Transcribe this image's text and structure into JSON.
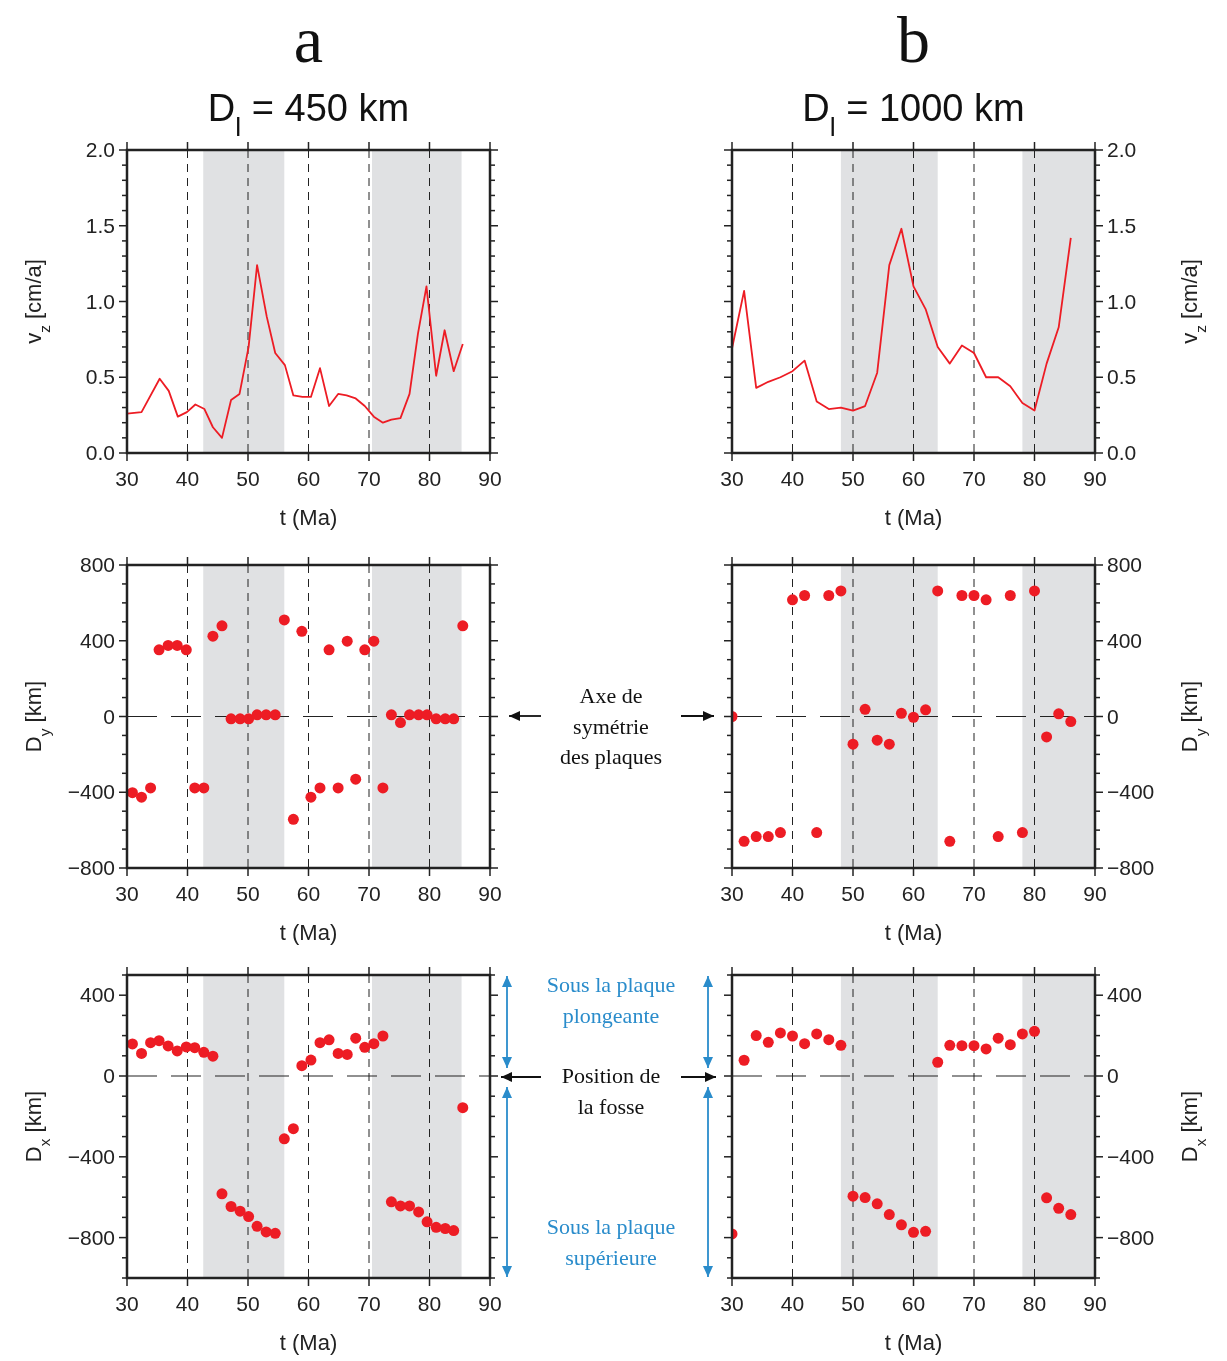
{
  "chart_data": [
    {
      "type": "line",
      "title": "a",
      "subtitle": "D$_{l}$ = 450 km",
      "xlabel": "t (Ma)",
      "ylabel": "v$_{z}$ [cm/a]",
      "xlim": [
        30,
        90
      ],
      "xticks": [
        30,
        40,
        50,
        60,
        70,
        80,
        90
      ],
      "ylim": [
        0,
        2
      ],
      "yticks": [
        {
          "value": 0,
          "label": "0.0"
        },
        {
          "value": 0.1,
          "label": null
        },
        {
          "value": 0.2,
          "label": null
        },
        {
          "value": 0.3,
          "label": null
        },
        {
          "value": 0.4,
          "label": null
        },
        {
          "value": 0.5,
          "label": "0.5"
        },
        {
          "value": 0.6,
          "label": null
        },
        {
          "value": 0.7,
          "label": null
        },
        {
          "value": 0.8,
          "label": null
        },
        {
          "value": 0.9,
          "label": null
        },
        {
          "value": 1,
          "label": "1.0"
        },
        {
          "value": 1.1,
          "label": null
        },
        {
          "value": 1.2,
          "label": null
        },
        {
          "value": 1.3,
          "label": null
        },
        {
          "value": 1.4,
          "label": null
        },
        {
          "value": 1.5,
          "label": "1.5"
        },
        {
          "value": 1.6,
          "label": null
        },
        {
          "value": 1.7,
          "label": null
        },
        {
          "value": 1.8,
          "label": null
        },
        {
          "value": 1.9,
          "label": null
        },
        {
          "value": 2,
          "label": "2.0"
        }
      ],
      "grid": "x",
      "marker": "none",
      "line_style": "solid",
      "bands": [
        {
          "axis": "x",
          "from": 42.6,
          "to": 56,
          "color": "#e0e1e3"
        },
        {
          "axis": "x",
          "from": 70.5,
          "to": 85.3,
          "color": "#e0e1e3"
        }
      ],
      "series": [
        {
          "color": "#ed1c24",
          "x": [
            30,
            32.4,
            35.4,
            36.9,
            38.4,
            39.9,
            41.3,
            42.8,
            44.2,
            45.7,
            47.2,
            48.6,
            50.1,
            51.5,
            53.1,
            54.5,
            56.1,
            57.5,
            59,
            60.4,
            61.9,
            63.4,
            64.9,
            66.3,
            67.8,
            69.3,
            70.8,
            72.3,
            73.7,
            75.2,
            76.7,
            78.1,
            79.5,
            81.1,
            82.5,
            84,
            85.5
          ],
          "values": [
            0.26,
            0.27,
            0.49,
            0.41,
            0.24,
            0.27,
            0.32,
            0.29,
            0.17,
            0.1,
            0.35,
            0.39,
            0.7,
            1.24,
            0.9,
            0.66,
            0.58,
            0.38,
            0.37,
            0.37,
            0.56,
            0.31,
            0.39,
            0.38,
            0.36,
            0.31,
            0.24,
            0.2,
            0.22,
            0.23,
            0.39,
            0.79,
            1.1,
            0.51,
            0.81,
            0.54,
            0.72
          ]
        }
      ]
    },
    {
      "type": "line",
      "title": "b",
      "subtitle": "D$_{l}$ = 1000 km",
      "xlabel": "t (Ma)",
      "y2label": "v$_{z}$ [cm/a]",
      "xlim": [
        30,
        90
      ],
      "xticks": [
        30,
        40,
        50,
        60,
        70,
        80,
        90
      ],
      "y2lim": [
        0,
        2
      ],
      "y2ticks": [
        {
          "value": 0,
          "label": "0.0"
        },
        {
          "value": 0.1,
          "label": null
        },
        {
          "value": 0.2,
          "label": null
        },
        {
          "value": 0.3,
          "label": null
        },
        {
          "value": 0.4,
          "label": null
        },
        {
          "value": 0.5,
          "label": "0.5"
        },
        {
          "value": 0.6,
          "label": null
        },
        {
          "value": 0.7,
          "label": null
        },
        {
          "value": 0.8,
          "label": null
        },
        {
          "value": 0.9,
          "label": null
        },
        {
          "value": 1,
          "label": "1.0"
        },
        {
          "value": 1.1,
          "label": null
        },
        {
          "value": 1.2,
          "label": null
        },
        {
          "value": 1.3,
          "label": null
        },
        {
          "value": 1.4,
          "label": null
        },
        {
          "value": 1.5,
          "label": "1.5"
        },
        {
          "value": 1.6,
          "label": null
        },
        {
          "value": 1.7,
          "label": null
        },
        {
          "value": 1.8,
          "label": null
        },
        {
          "value": 1.9,
          "label": null
        },
        {
          "value": 2,
          "label": "2.0"
        }
      ],
      "grid": "x",
      "marker": "none",
      "line_style": "solid",
      "bands": [
        {
          "axis": "x",
          "from": 48,
          "to": 64,
          "color": "#e0e1e3"
        },
        {
          "axis": "x",
          "from": 78,
          "to": 90,
          "color": "#e0e1e3"
        }
      ],
      "series": [
        {
          "color": "#ed1c24",
          "axis": "y2",
          "x": [
            30,
            32,
            34,
            36,
            38,
            40,
            42,
            44,
            46,
            48,
            50,
            52,
            54,
            56,
            58,
            60,
            62,
            64,
            66,
            68,
            70,
            72,
            74,
            76,
            78,
            80,
            82,
            84,
            86
          ],
          "values": [
            0.69,
            1.07,
            0.43,
            0.47,
            0.5,
            0.54,
            0.61,
            0.34,
            0.29,
            0.3,
            0.28,
            0.31,
            0.53,
            1.24,
            1.48,
            1.1,
            0.95,
            0.7,
            0.59,
            0.71,
            0.66,
            0.5,
            0.5,
            0.44,
            0.33,
            0.28,
            0.59,
            0.83,
            1.42
          ]
        }
      ]
    },
    {
      "type": "scatter",
      "xlabel": "t (Ma)",
      "ylabel": "D$_{y}$ [km]",
      "xlim": [
        30,
        90
      ],
      "xticks": [
        30,
        40,
        50,
        60,
        70,
        80,
        90
      ],
      "ylim": [
        -800,
        800
      ],
      "yticks": [
        {
          "value": -800,
          "label": "−800"
        },
        {
          "value": -700,
          "label": null
        },
        {
          "value": -600,
          "label": null
        },
        {
          "value": -500,
          "label": null
        },
        {
          "value": -400,
          "label": "−400"
        },
        {
          "value": -300,
          "label": null
        },
        {
          "value": -200,
          "label": null
        },
        {
          "value": -100,
          "label": null
        },
        0,
        {
          "value": 100,
          "label": null
        },
        {
          "value": 200,
          "label": null
        },
        {
          "value": 300,
          "label": null
        },
        400,
        {
          "value": 500,
          "label": null
        },
        {
          "value": 600,
          "label": null
        },
        {
          "value": 700,
          "label": null
        },
        800
      ],
      "grid": "x",
      "marker": "circle",
      "bands": [
        {
          "axis": "x",
          "from": 42.6,
          "to": 56,
          "color": "#e0e1e3"
        },
        {
          "axis": "x",
          "from": 70.5,
          "to": 85.3,
          "color": "#e0e1e3"
        }
      ],
      "ref_lines": [
        {
          "axis": "y",
          "value": 0,
          "line_style": "dashed"
        }
      ],
      "annotations": [
        "Axe de\nsymétrie\ndes plaques"
      ],
      "series": [
        {
          "color": "#ed1c24",
          "x": [
            30.9,
            32.4,
            33.9,
            35.3,
            36.8,
            38.3,
            39.8,
            41.2,
            42.7,
            44.2,
            45.7,
            47.2,
            48.7,
            50.1,
            51.5,
            53,
            54.5,
            56,
            57.5,
            58.9,
            60.4,
            61.9,
            63.4,
            64.9,
            66.4,
            67.8,
            69.3,
            70.8,
            72.3,
            73.7,
            75.2,
            76.7,
            78.2,
            79.6,
            81.1,
            82.6,
            84,
            85.5
          ],
          "values": [
            -402,
            -426,
            -377,
            352,
            375,
            375,
            352,
            -377,
            -377,
            424,
            479,
            -12,
            -12,
            -12,
            9,
            9,
            9,
            510,
            -543,
            450,
            -426,
            -377,
            352,
            -377,
            398,
            -331,
            352,
            398,
            -377,
            9,
            -32,
            9,
            9,
            9,
            -12,
            -12,
            -12,
            479
          ]
        }
      ]
    },
    {
      "type": "scatter",
      "xlabel": "t (Ma)",
      "y2label": "D$_{y}$ [km]",
      "xlim": [
        30,
        90
      ],
      "xticks": [
        30,
        40,
        50,
        60,
        70,
        80,
        90
      ],
      "y2lim": [
        -800,
        800
      ],
      "y2ticks": [
        {
          "value": -800,
          "label": "−800"
        },
        {
          "value": -700,
          "label": null
        },
        {
          "value": -600,
          "label": null
        },
        {
          "value": -500,
          "label": null
        },
        {
          "value": -400,
          "label": "−400"
        },
        {
          "value": -300,
          "label": null
        },
        {
          "value": -200,
          "label": null
        },
        {
          "value": -100,
          "label": null
        },
        0,
        {
          "value": 100,
          "label": null
        },
        {
          "value": 200,
          "label": null
        },
        {
          "value": 300,
          "label": null
        },
        400,
        {
          "value": 500,
          "label": null
        },
        {
          "value": 600,
          "label": null
        },
        {
          "value": 700,
          "label": null
        },
        800
      ],
      "grid": "x",
      "marker": "circle",
      "bands": [
        {
          "axis": "x",
          "from": 48,
          "to": 64,
          "color": "#e0e1e3"
        },
        {
          "axis": "x",
          "from": 78,
          "to": 90,
          "color": "#e0e1e3"
        }
      ],
      "ref_lines": [
        {
          "axis": "y2",
          "value": 0,
          "line_style": "dashed"
        }
      ],
      "series": [
        {
          "color": "#ed1c24",
          "axis": "y2",
          "x": [
            30,
            32,
            34,
            36,
            38,
            40,
            42,
            44,
            46,
            48,
            50,
            52,
            54,
            56,
            58,
            60,
            62,
            64,
            66,
            68,
            70,
            72,
            74,
            76,
            78,
            80,
            82,
            84,
            86
          ],
          "values": [
            0,
            -659,
            -634,
            -634,
            -613,
            616,
            639,
            -613,
            639,
            663,
            -146,
            38,
            -125,
            -146,
            17,
            -4,
            35,
            663,
            -659,
            639,
            639,
            616,
            -634,
            639,
            -613,
            663,
            -108,
            14,
            -27
          ]
        }
      ]
    },
    {
      "type": "scatter",
      "xlabel": "t (Ma)",
      "ylabel": "D$_{x}$ [km]",
      "xlim": [
        30,
        90
      ],
      "xticks": [
        30,
        40,
        50,
        60,
        70,
        80,
        90
      ],
      "ylim": [
        -1000,
        500
      ],
      "yticks": [
        {
          "value": -1000,
          "label": null
        },
        {
          "value": -900,
          "label": null
        },
        {
          "value": -800,
          "label": "−800"
        },
        {
          "value": -700,
          "label": null
        },
        {
          "value": -600,
          "label": null
        },
        {
          "value": -500,
          "label": null
        },
        {
          "value": -400,
          "label": "−400"
        },
        {
          "value": -300,
          "label": null
        },
        {
          "value": -200,
          "label": null
        },
        {
          "value": -100,
          "label": null
        },
        0,
        {
          "value": 100,
          "label": null
        },
        {
          "value": 200,
          "label": null
        },
        {
          "value": 300,
          "label": null
        },
        400,
        {
          "value": 500,
          "label": null
        }
      ],
      "grid": "x",
      "marker": "circle",
      "bands": [
        {
          "axis": "x",
          "from": 42.6,
          "to": 56,
          "color": "#e0e1e3"
        },
        {
          "axis": "x",
          "from": 70.5,
          "to": 85.3,
          "color": "#e0e1e3"
        }
      ],
      "ref_lines": [
        {
          "axis": "y",
          "value": 0,
          "line_style": "dashed"
        }
      ],
      "annotations": [
        "Sous la plaque\nplongeante",
        "Position de\nla fosse",
        "Sous la plaque\nsupérieure"
      ],
      "series": [
        {
          "color": "#ed1c24",
          "x": [
            30.9,
            32.4,
            33.9,
            35.3,
            36.8,
            38.3,
            39.8,
            41.2,
            42.7,
            44.2,
            45.7,
            47.2,
            48.7,
            50.1,
            51.5,
            53,
            54.5,
            56,
            57.5,
            58.9,
            60.4,
            61.9,
            63.4,
            64.9,
            66.4,
            67.8,
            69.3,
            70.8,
            72.3,
            73.7,
            75.2,
            76.7,
            78.2,
            79.6,
            81.1,
            82.6,
            84,
            85.5
          ],
          "values": [
            159,
            112,
            165,
            175,
            149,
            124,
            144,
            140,
            117,
            98,
            -583,
            -646,
            -669,
            -696,
            -744,
            -772,
            -779,
            -311,
            -261,
            51,
            79,
            165,
            179,
            112,
            107,
            187,
            142,
            160,
            198,
            -623,
            -643,
            -643,
            -673,
            -722,
            -749,
            -755,
            -765,
            -157
          ]
        }
      ]
    },
    {
      "type": "scatter",
      "xlabel": "t (Ma)",
      "y2label": "D$_{x}$ [km]",
      "xlim": [
        30,
        90
      ],
      "xticks": [
        30,
        40,
        50,
        60,
        70,
        80,
        90
      ],
      "y2lim": [
        -1000,
        500
      ],
      "y2ticks": [
        {
          "value": -1000,
          "label": null
        },
        {
          "value": -900,
          "label": null
        },
        {
          "value": -800,
          "label": "−800"
        },
        {
          "value": -700,
          "label": null
        },
        {
          "value": -600,
          "label": null
        },
        {
          "value": -500,
          "label": null
        },
        {
          "value": -400,
          "label": "−400"
        },
        {
          "value": -300,
          "label": null
        },
        {
          "value": -200,
          "label": null
        },
        {
          "value": -100,
          "label": null
        },
        0,
        {
          "value": 100,
          "label": null
        },
        {
          "value": 200,
          "label": null
        },
        {
          "value": 300,
          "label": null
        },
        400,
        {
          "value": 500,
          "label": null
        }
      ],
      "grid": "x",
      "marker": "circle",
      "bands": [
        {
          "axis": "x",
          "from": 48,
          "to": 64,
          "color": "#e0e1e3"
        },
        {
          "axis": "x",
          "from": 78,
          "to": 90,
          "color": "#e0e1e3"
        }
      ],
      "ref_lines": [
        {
          "axis": "y2",
          "value": 0,
          "line_style": "dashed"
        }
      ],
      "series": [
        {
          "color": "#ed1c24",
          "axis": "y2",
          "x": [
            30,
            32,
            34,
            36,
            38,
            40,
            42,
            44,
            46,
            48,
            50,
            52,
            54,
            56,
            58,
            60,
            62,
            64,
            66,
            68,
            70,
            72,
            74,
            76,
            78,
            80,
            82,
            84,
            86
          ],
          "values": [
            -782,
            78,
            200,
            167,
            213,
            198,
            160,
            208,
            180,
            152,
            -595,
            -602,
            -633,
            -686,
            -737,
            -774,
            -769,
            68,
            152,
            150,
            150,
            134,
            187,
            155,
            208,
            221,
            -603,
            -655,
            -686
          ]
        }
      ]
    }
  ]
}
